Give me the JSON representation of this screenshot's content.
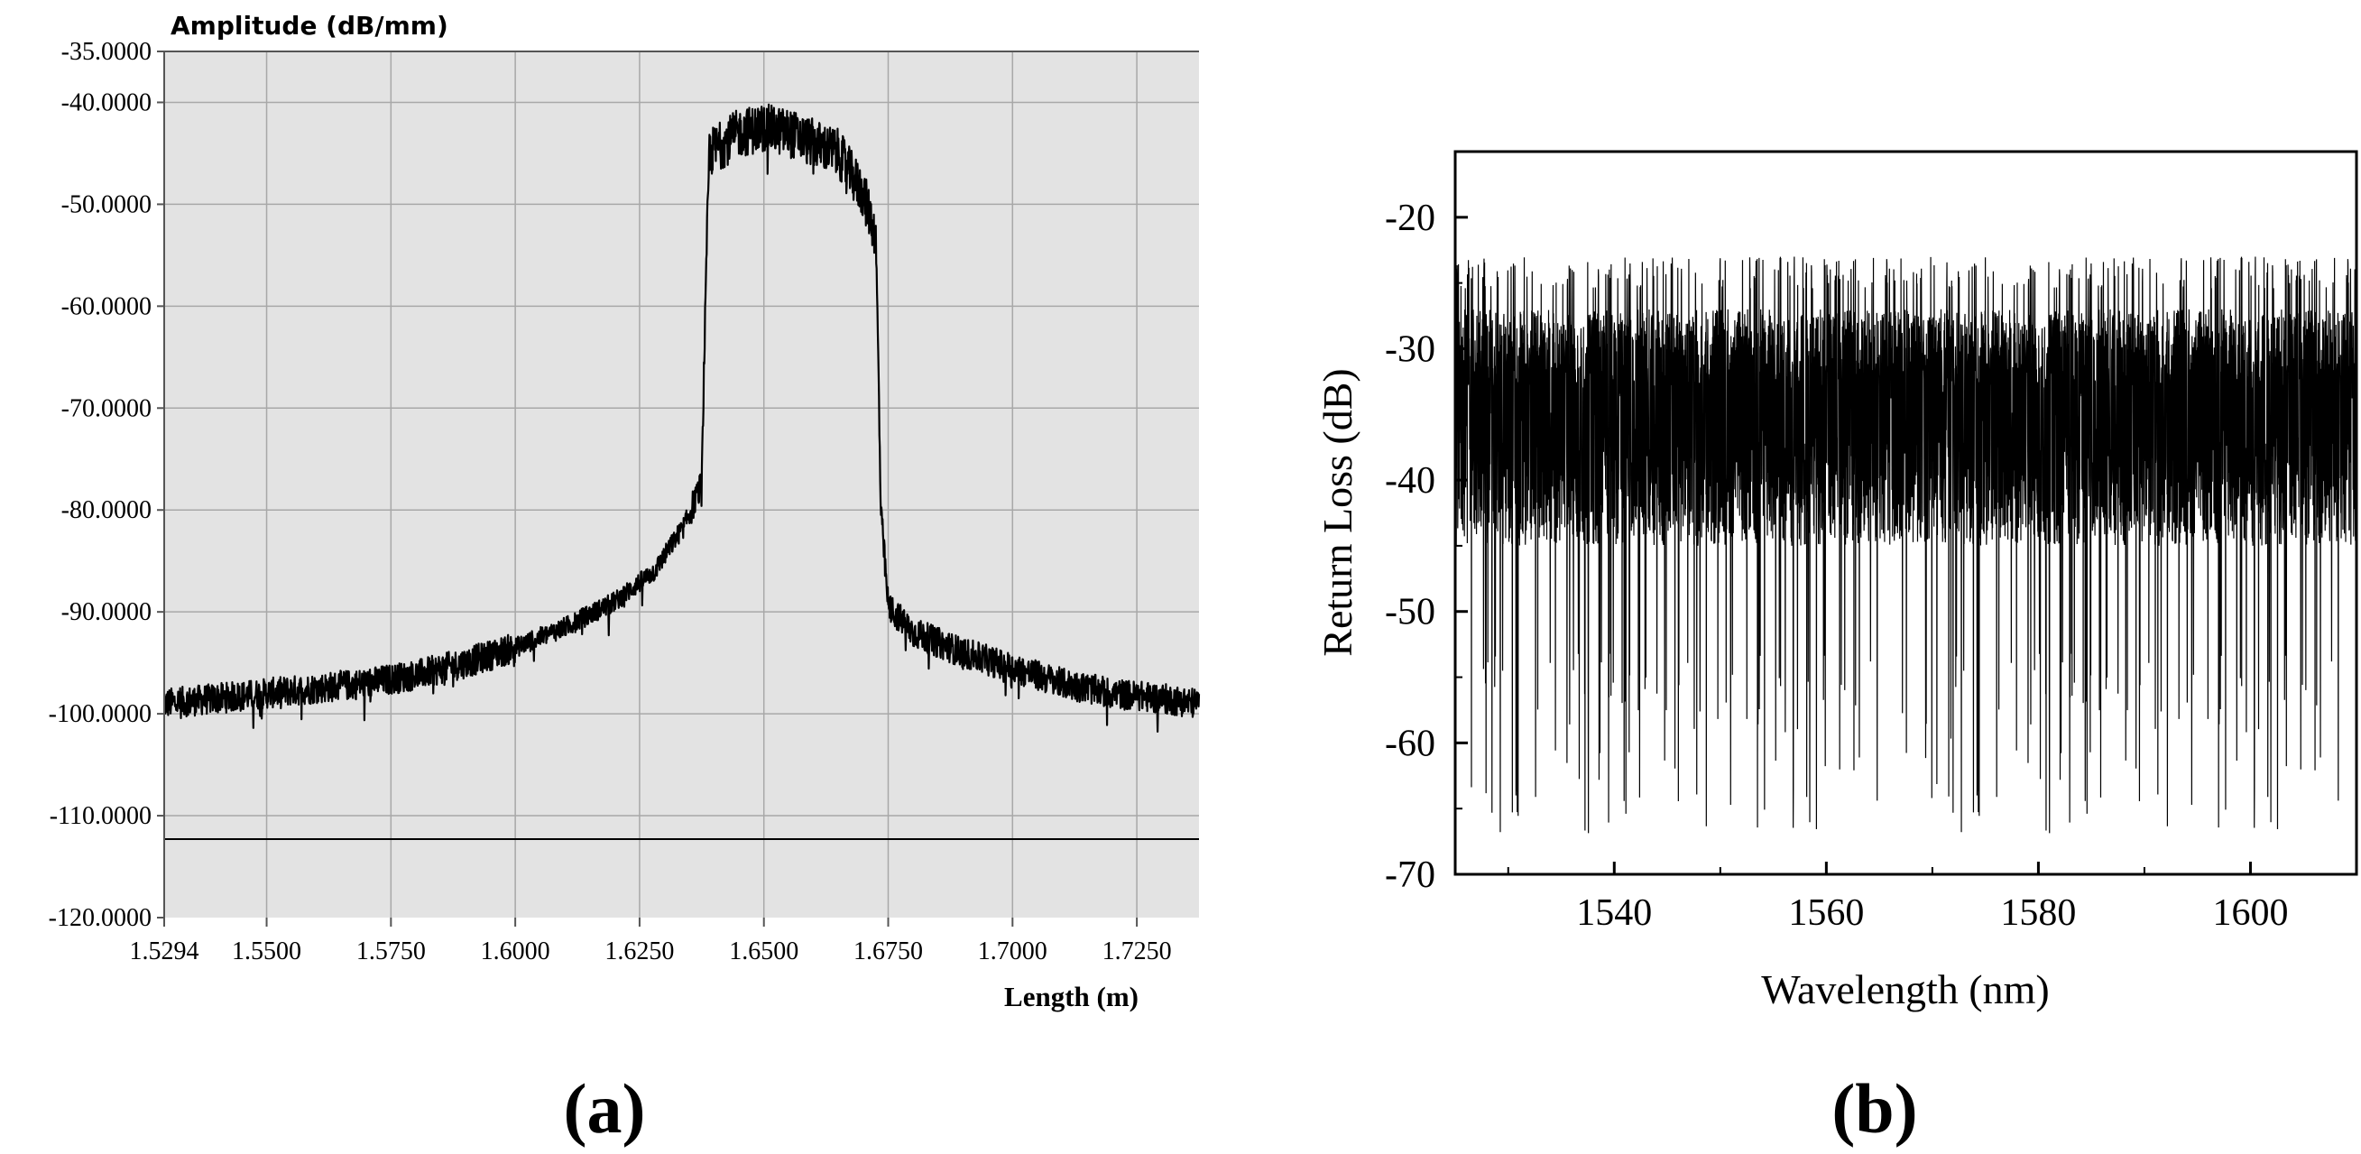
{
  "chart_data": [
    {
      "type": "line",
      "panel_label": "(a)",
      "ylabel": "Amplitude (dB/mm)",
      "xlabel": "Length (m)",
      "xlim": [
        1.5294,
        1.7375
      ],
      "ylim": [
        -120,
        -35
      ],
      "x_ticks": [
        1.5294,
        1.55,
        1.575,
        1.6,
        1.625,
        1.65,
        1.675,
        1.7,
        1.725
      ],
      "x_tick_labels": [
        "1.5294",
        "1.5500",
        "1.5750",
        "1.6000",
        "1.6250",
        "1.6500",
        "1.6750",
        "1.7000",
        "1.7250"
      ],
      "y_ticks": [
        -35,
        -40,
        -50,
        -60,
        -70,
        -80,
        -90,
        -100,
        -110,
        -120
      ],
      "y_tick_labels": [
        "-35.0000",
        "-40.0000",
        "-50.0000",
        "-60.0000",
        "-70.0000",
        "-80.0000",
        "-90.0000",
        "-100.0000",
        "-110.0000",
        "-120.0000"
      ],
      "grid": true,
      "background": "#e3e3e3",
      "threshold_line": -112.3,
      "series": [
        {
          "name": "amplitude",
          "x": [
            1.5294,
            1.54,
            1.55,
            1.56,
            1.57,
            1.58,
            1.59,
            1.6,
            1.61,
            1.62,
            1.628,
            1.634,
            1.6375,
            1.638,
            1.639,
            1.645,
            1.65,
            1.655,
            1.66,
            1.665,
            1.67,
            1.6725,
            1.673,
            1.6735,
            1.675,
            1.68,
            1.69,
            1.7,
            1.71,
            1.72,
            1.73,
            1.7375
          ],
          "values": [
            -99,
            -98.5,
            -98,
            -97.5,
            -97,
            -96.2,
            -95,
            -93.5,
            -91.5,
            -89,
            -86,
            -81.5,
            -77.5,
            -65,
            -45,
            -43,
            -42.5,
            -43,
            -44,
            -45,
            -49,
            -53,
            -65,
            -80,
            -89.5,
            -92,
            -94,
            -95.5,
            -97,
            -98,
            -98.5,
            -99
          ],
          "noise_amplitude_db": 1.5,
          "color": "#000000"
        }
      ]
    },
    {
      "type": "line",
      "panel_label": "(b)",
      "xlabel": "Wavelength (nm)",
      "ylabel": "Return Loss (dB)",
      "xlim": [
        1525,
        1610
      ],
      "ylim": [
        -70,
        -15
      ],
      "x_ticks": [
        1540,
        1560,
        1580,
        1600
      ],
      "x_tick_labels": [
        "1540",
        "1560",
        "1580",
        "1600"
      ],
      "y_ticks": [
        -20,
        -30,
        -40,
        -50,
        -60,
        -70
      ],
      "y_tick_labels": [
        "-20",
        "-30",
        "-40",
        "-50",
        "-60",
        "-70"
      ],
      "grid": false,
      "series": [
        {
          "name": "return loss",
          "x_range": [
            1525,
            1610
          ],
          "mean": -35,
          "band": [
            -45,
            -27
          ],
          "peaks_max": -23,
          "dips_min": -67,
          "color": "#000000"
        }
      ]
    }
  ]
}
